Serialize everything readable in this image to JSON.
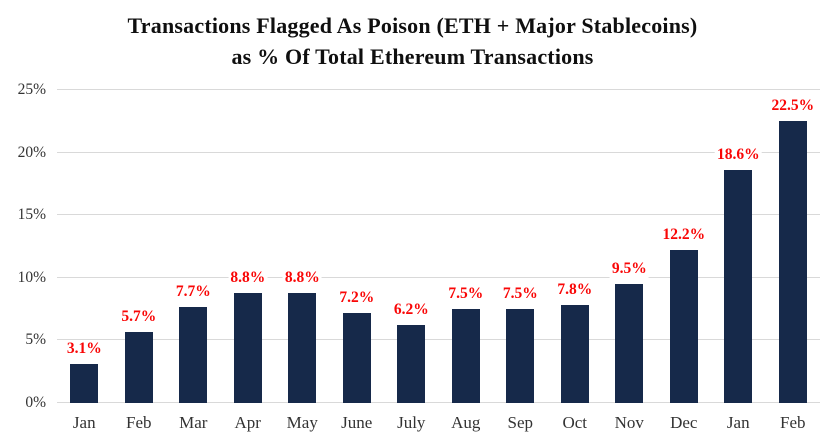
{
  "chart_data": {
    "type": "bar",
    "title_line1": "Transactions Flagged As Poison (ETH + Major Stablecoins)",
    "title_line2": "as % Of Total Ethereum Transactions",
    "categories": [
      "Jan",
      "Feb",
      "Mar",
      "Apr",
      "May",
      "June",
      "July",
      "Aug",
      "Sep",
      "Oct",
      "Nov",
      "Dec",
      "Jan",
      "Feb"
    ],
    "values": [
      3.1,
      5.7,
      7.7,
      8.8,
      8.8,
      7.2,
      6.2,
      7.5,
      7.5,
      7.8,
      9.5,
      12.2,
      18.6,
      22.5
    ],
    "value_labels": [
      "3.1%",
      "5.7%",
      "7.7%",
      "8.8%",
      "8.8%",
      "7.2%",
      "6.2%",
      "7.5%",
      "7.5%",
      "7.8%",
      "9.5%",
      "12.2%",
      "18.6%",
      "22.5%"
    ],
    "xlabel": "",
    "ylabel": "",
    "ylim": [
      0,
      25
    ],
    "y_tick_values": [
      0,
      5,
      10,
      15,
      20,
      25
    ],
    "y_tick_labels": [
      "0%",
      "5%",
      "10%",
      "15%",
      "20%",
      "25%"
    ],
    "grid": true,
    "legend": "none",
    "colors": {
      "bar": "#16294a",
      "value_label": "#f90606",
      "axis_text": "#333333",
      "gridline": "#d9d9d9",
      "title": "#0f0f0f",
      "background": "#ffffff"
    }
  }
}
